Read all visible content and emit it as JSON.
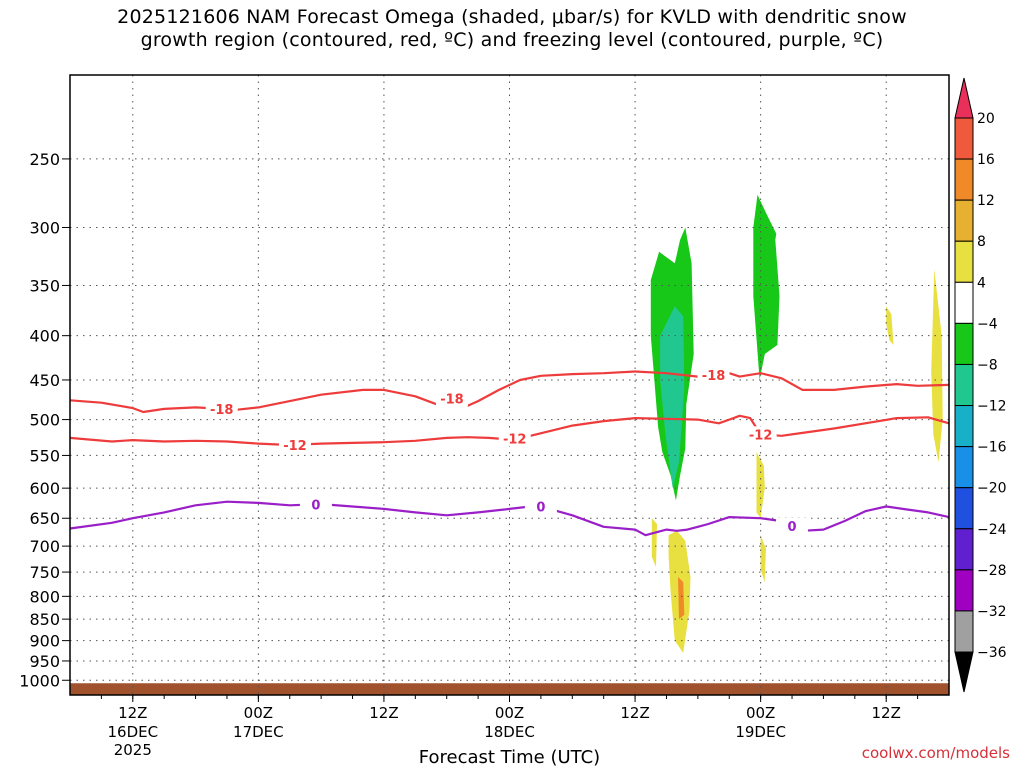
{
  "title_line1": "2025121606 NAM Forecast Omega (shaded, μbar/s) for KVLD with dendritic snow",
  "title_line2": "growth region (contoured, red, ºC) and freezing level (contoured, purple, ºC)",
  "credit": "coolwx.com/models",
  "colors": {
    "dgz_contour": "#ee3b3b",
    "freezing_contour": "#9a1fc8",
    "terrain": "#a0522d",
    "grid": "#555555"
  },
  "chart_data": {
    "type": "heatmap",
    "xlabel": "Forecast Time (UTC)",
    "x_ticks": [
      {
        "hour": 6,
        "label": "12Z",
        "sub": "16DEC",
        "sub2": "2025"
      },
      {
        "hour": 18,
        "label": "00Z",
        "sub": "17DEC",
        "sub2": ""
      },
      {
        "hour": 30,
        "label": "12Z",
        "sub": "",
        "sub2": ""
      },
      {
        "hour": 42,
        "label": "00Z",
        "sub": "18DEC",
        "sub2": ""
      },
      {
        "hour": 54,
        "label": "12Z",
        "sub": "",
        "sub2": ""
      },
      {
        "hour": 66,
        "label": "00Z",
        "sub": "19DEC",
        "sub2": ""
      },
      {
        "hour": 78,
        "label": "12Z",
        "sub": "",
        "sub2": ""
      }
    ],
    "x_range_hours": [
      0,
      84
    ],
    "y_levels_hpa": [
      250,
      300,
      350,
      400,
      450,
      500,
      550,
      600,
      650,
      700,
      750,
      800,
      850,
      900,
      950,
      1000
    ],
    "y_scale": "log-pressure",
    "y_range_hpa": [
      200,
      1040
    ],
    "grid": true,
    "colorbar": {
      "labels": [
        "20",
        "16",
        "12",
        "8",
        "4",
        "−4",
        "−8",
        "−12",
        "−16",
        "−20",
        "−24",
        "−28",
        "−32",
        "−36"
      ],
      "colors": [
        "#e8305a",
        "#f05a3c",
        "#f08a28",
        "#e8b030",
        "#e8e040",
        "#ffffff",
        "#18c818",
        "#20c890",
        "#18b0c8",
        "#1890e8",
        "#2050e0",
        "#6020d0",
        "#a000c0",
        "#a0a0a0",
        "#000000"
      ]
    },
    "dgz_minus18": {
      "label": "-18",
      "label_hours": [
        14.5,
        36.5,
        61.5
      ],
      "hours": [
        0,
        3,
        6,
        7,
        9,
        12,
        16,
        18,
        21,
        24,
        28,
        30,
        33,
        35,
        36,
        37,
        38,
        39,
        41,
        43,
        45,
        48,
        51,
        54,
        57,
        60,
        63,
        64,
        66,
        68,
        70,
        73,
        76,
        79,
        81,
        84
      ],
      "p": [
        475,
        478,
        485,
        490,
        486,
        484,
        487,
        484,
        476,
        468,
        462,
        462,
        470,
        480,
        472,
        474,
        482,
        476,
        462,
        450,
        445,
        443,
        442,
        440,
        442,
        446,
        442,
        446,
        442,
        448,
        462,
        462,
        458,
        455,
        457,
        456
      ]
    },
    "dgz_minus12": {
      "label": "-12",
      "label_hours": [
        21.5,
        42.5,
        66
      ],
      "hours": [
        0,
        4,
        6,
        9,
        12,
        15,
        18,
        21,
        24,
        27,
        30,
        33,
        36,
        38,
        40,
        42,
        44,
        46,
        48,
        51,
        54,
        57,
        60,
        62,
        63,
        64,
        65,
        66,
        68,
        70,
        73,
        76,
        79,
        82,
        84
      ],
      "p": [
        525,
        530,
        528,
        530,
        529,
        530,
        533,
        535,
        533,
        532,
        531,
        529,
        525,
        524,
        525,
        527,
        522,
        515,
        508,
        502,
        498,
        499,
        500,
        505,
        500,
        495,
        498,
        520,
        522,
        518,
        512,
        505,
        498,
        497,
        505
      ]
    },
    "freezing_0c": {
      "label": "0",
      "label_hours": [
        23.5,
        45,
        69
      ],
      "hours": [
        0,
        4,
        6,
        9,
        12,
        15,
        18,
        21,
        24,
        27,
        30,
        33,
        36,
        39,
        42,
        44,
        45,
        48,
        51,
        54,
        55,
        57,
        58,
        59,
        60,
        61,
        63,
        66,
        68,
        70,
        72,
        74,
        76,
        78,
        80,
        82,
        84
      ],
      "p": [
        668,
        658,
        650,
        640,
        628,
        622,
        624,
        628,
        626,
        630,
        634,
        640,
        645,
        640,
        634,
        630,
        630,
        645,
        665,
        670,
        680,
        670,
        672,
        670,
        665,
        660,
        648,
        650,
        655,
        672,
        670,
        655,
        638,
        630,
        635,
        640,
        648
      ]
    },
    "terrain_hpa": 1008,
    "omega_areas": [
      {
        "value": -6,
        "hours": [
          55.5,
          56.3,
          57.8,
          58.3,
          58.8,
          59.4,
          59.6,
          58.9,
          58.8,
          58.3,
          57.9,
          57.4,
          56.6,
          56.2,
          55.5
        ],
        "p": [
          345,
          320,
          330,
          310,
          300,
          330,
          420,
          480,
          540,
          580,
          620,
          580,
          545,
          510,
          400
        ]
      },
      {
        "value": -10,
        "hours": [
          56.4,
          57.8,
          58.6,
          58.7,
          58.2,
          57.6,
          56.9,
          56.4
        ],
        "p": [
          400,
          370,
          380,
          460,
          560,
          600,
          520,
          450
        ]
      },
      {
        "value": -6,
        "hours": [
          65.3,
          65.7,
          66.6,
          67.5,
          67.4,
          67.8,
          67.6,
          66.4,
          65.9,
          65.3
        ],
        "p": [
          300,
          275,
          290,
          305,
          310,
          360,
          410,
          420,
          450,
          360
        ]
      },
      {
        "value": 6,
        "hours": [
          57.2,
          58.0,
          58.8,
          59.3,
          59.2,
          58.6,
          57.8,
          57.4,
          57.2
        ],
        "p": [
          680,
          672,
          690,
          760,
          830,
          930,
          900,
          790,
          720
        ]
      },
      {
        "value": 12,
        "hours": [
          58.1,
          58.6,
          58.7,
          58.2
        ],
        "p": [
          760,
          770,
          840,
          850
        ]
      },
      {
        "value": 6,
        "hours": [
          55.6,
          56.1,
          56.0,
          55.6
        ],
        "p": [
          650,
          660,
          740,
          720
        ]
      },
      {
        "value": 6,
        "hours": [
          65.6,
          66.3,
          66.4,
          66.0,
          65.6
        ],
        "p": [
          545,
          565,
          600,
          650,
          640
        ]
      },
      {
        "value": 6,
        "hours": [
          82.6,
          83.3,
          83.4,
          83.0,
          82.5,
          82.3
        ],
        "p": [
          335,
          400,
          500,
          560,
          520,
          440
        ]
      },
      {
        "value": 6,
        "hours": [
          78.0,
          78.5,
          78.7,
          78.3,
          78.0
        ],
        "p": [
          370,
          378,
          410,
          405,
          388
        ]
      },
      {
        "value": 6,
        "hours": [
          66.0,
          66.5,
          66.4,
          66.0
        ],
        "p": [
          680,
          705,
          770,
          745
        ]
      }
    ]
  }
}
